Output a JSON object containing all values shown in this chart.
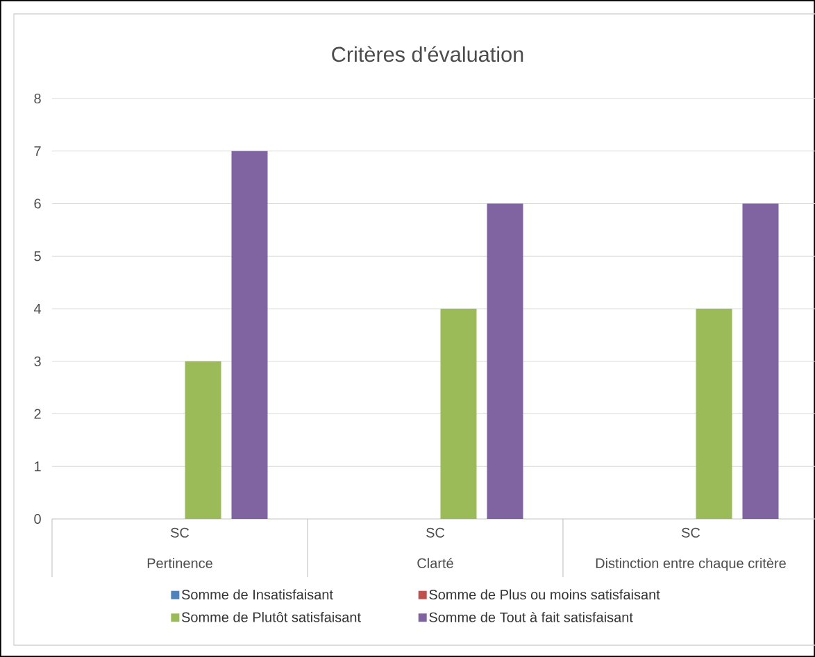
{
  "chart_data": {
    "type": "bar",
    "title": "Critères d'évaluation",
    "categories": [
      "Pertinence",
      "Clarté",
      "Distinction entre chaque critère"
    ],
    "annotations": [
      "SC",
      "SC",
      "SC"
    ],
    "series": [
      {
        "name": "Somme de Insatisfaisant",
        "color": "#4f81bd",
        "values": [
          0,
          0,
          0
        ]
      },
      {
        "name": "Somme de Plus ou moins satisfaisant",
        "color": "#c0504d",
        "values": [
          0,
          0,
          0
        ]
      },
      {
        "name": "Somme de Plutôt satisfaisant",
        "color": "#9bbb59",
        "values": [
          3,
          4,
          4
        ]
      },
      {
        "name": "Somme de Tout à fait satisfaisant",
        "color": "#8064a2",
        "values": [
          7,
          6,
          6
        ]
      }
    ],
    "ylim": [
      0,
      8
    ],
    "yticks": [
      0,
      1,
      2,
      3,
      4,
      5,
      6,
      7,
      8
    ],
    "grid": "y",
    "legend": "bottom"
  }
}
